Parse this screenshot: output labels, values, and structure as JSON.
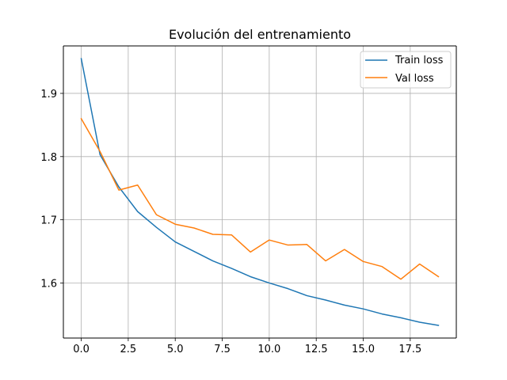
{
  "chart_data": {
    "type": "line",
    "title": "Evolución del entrenamiento",
    "xlabel": "",
    "ylabel": "",
    "x": [
      0,
      1,
      2,
      3,
      4,
      5,
      6,
      7,
      8,
      9,
      10,
      11,
      12,
      13,
      14,
      15,
      16,
      17,
      18,
      19
    ],
    "series": [
      {
        "name": "Train loss",
        "color": "#1f77b4",
        "values": [
          1.955,
          1.803,
          1.752,
          1.713,
          1.688,
          1.665,
          1.65,
          1.635,
          1.623,
          1.61,
          1.6,
          1.591,
          1.58,
          1.573,
          1.565,
          1.559,
          1.551,
          1.545,
          1.538,
          1.533
        ]
      },
      {
        "name": "Val loss",
        "color": "#ff7f0e",
        "values": [
          1.86,
          1.808,
          1.747,
          1.755,
          1.708,
          1.693,
          1.687,
          1.677,
          1.676,
          1.649,
          1.668,
          1.66,
          1.661,
          1.635,
          1.653,
          1.634,
          1.626,
          1.606,
          1.63,
          1.61
        ]
      }
    ],
    "xlim": [
      -0.95,
      19.95
    ],
    "ylim": [
      1.5129,
      1.9751
    ],
    "xticks": [
      0,
      2.5,
      5,
      7.5,
      10,
      12.5,
      15,
      17.5
    ],
    "xtick_labels": [
      "0.0",
      "2.5",
      "5.0",
      "7.5",
      "10.0",
      "12.5",
      "15.0",
      "17.5"
    ],
    "yticks": [
      1.6,
      1.7,
      1.8,
      1.9
    ],
    "ytick_labels": [
      "1.6",
      "1.7",
      "1.8",
      "1.9"
    ],
    "grid": true,
    "legend_position": "top-right"
  }
}
